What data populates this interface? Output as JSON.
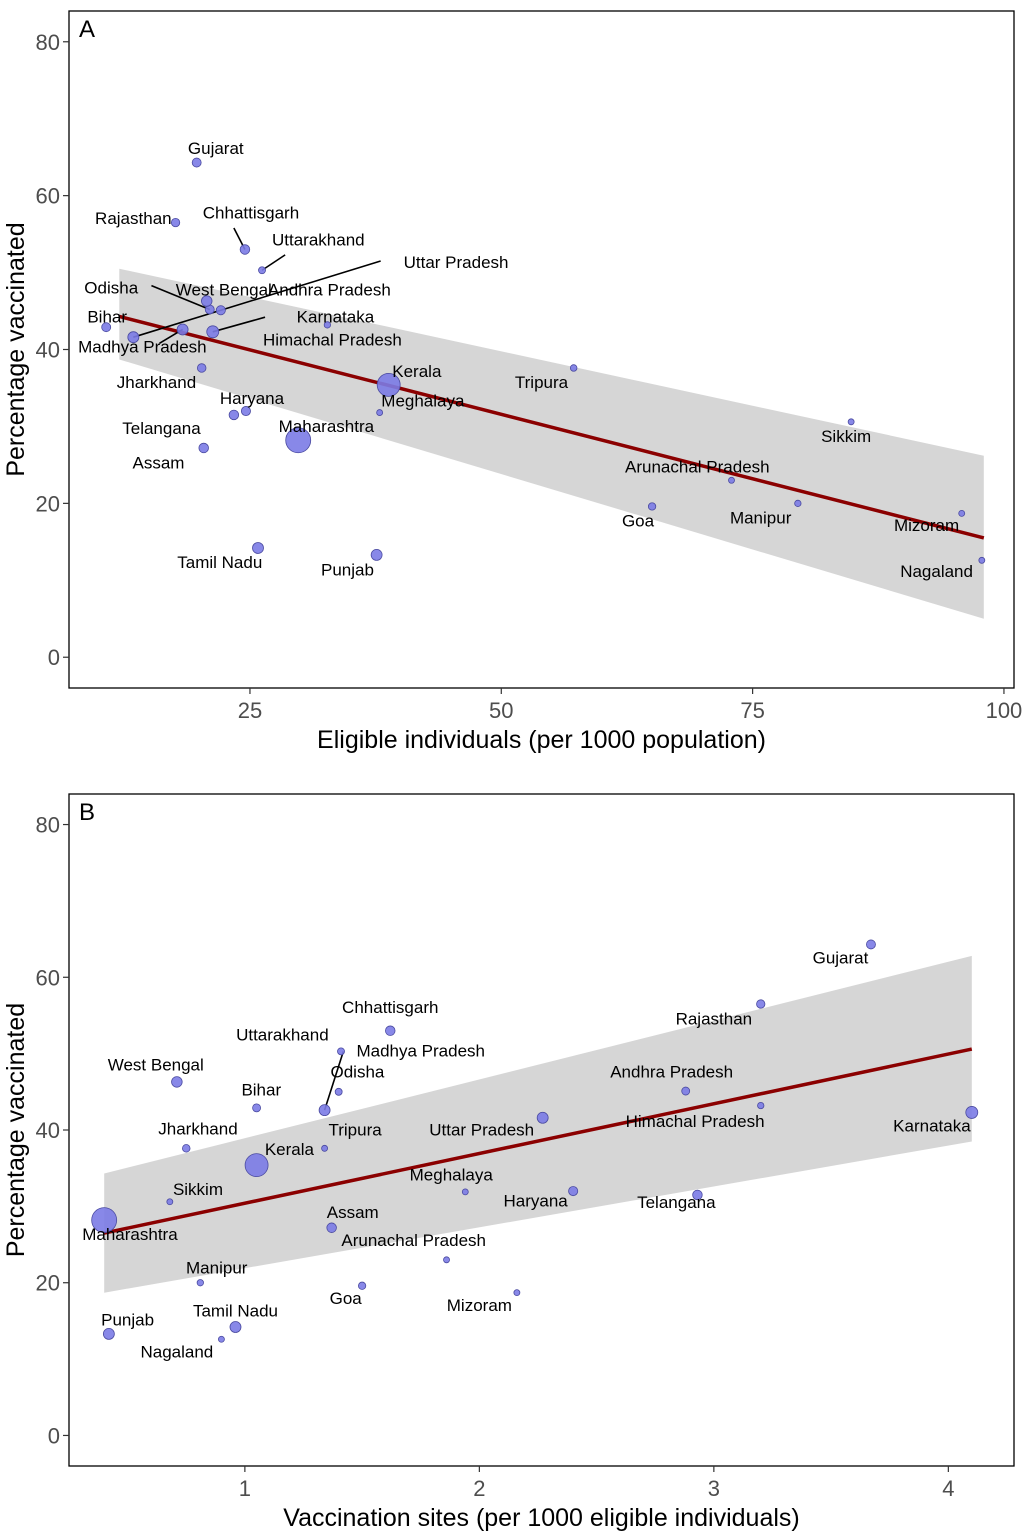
{
  "chart_data": [
    {
      "type": "scatter",
      "panel": "A",
      "xlabel": "Eligible individuals (per 1000 population)",
      "ylabel": "Percentage vaccinated",
      "xlim": [
        7,
        101
      ],
      "ylim": [
        -4,
        84
      ],
      "xticks": [
        25,
        50,
        75,
        100
      ],
      "yticks": [
        0,
        20,
        40,
        60,
        80
      ],
      "fit": {
        "x0": 12,
        "y0": 44.3,
        "x1": 98,
        "y1": 15.5
      },
      "band": [
        [
          12,
          50.5
        ],
        [
          98,
          26.2
        ],
        [
          98,
          5.0
        ],
        [
          12,
          38.7
        ]
      ],
      "points": [
        {
          "name": "Gujarat",
          "x": 19.7,
          "y": 64.3,
          "s": 4.5
        },
        {
          "name": "Rajasthan",
          "x": 17.6,
          "y": 56.5,
          "s": 4.2
        },
        {
          "name": "Chhattisgarh",
          "x": 24.5,
          "y": 53.0,
          "s": 4.8
        },
        {
          "name": "Uttarakhand",
          "x": 26.2,
          "y": 50.3,
          "s": 3.5
        },
        {
          "name": "Uttar Pradesh",
          "x": 13.4,
          "y": 41.6,
          "s": 5.5
        },
        {
          "name": "Odisha",
          "x": 21.0,
          "y": 45.2,
          "s": 4.5
        },
        {
          "name": "West Bengal",
          "x": 20.7,
          "y": 46.3,
          "s": 5.3
        },
        {
          "name": "Andhra Pradesh",
          "x": 22.1,
          "y": 45.1,
          "s": 4.6
        },
        {
          "name": "Bihar",
          "x": 10.7,
          "y": 42.9,
          "s": 4.5
        },
        {
          "name": "Madhya Pradesh",
          "x": 18.3,
          "y": 42.6,
          "s": 5.5
        },
        {
          "name": "Karnataka",
          "x": 21.3,
          "y": 42.3,
          "s": 6.0
        },
        {
          "name": "Himachal Pradesh",
          "x": 32.7,
          "y": 43.2,
          "s": 3.2
        },
        {
          "name": "Jharkhand",
          "x": 20.2,
          "y": 37.6,
          "s": 4.3
        },
        {
          "name": "Kerala",
          "x": 38.8,
          "y": 35.4,
          "s": 11.5
        },
        {
          "name": "Tripura",
          "x": 57.2,
          "y": 37.6,
          "s": 3.3
        },
        {
          "name": "Haryana",
          "x": 24.6,
          "y": 32.0,
          "s": 4.6
        },
        {
          "name": "Meghalaya",
          "x": 37.9,
          "y": 31.8,
          "s": 3.0
        },
        {
          "name": "Telangana",
          "x": 23.4,
          "y": 31.5,
          "s": 4.8
        },
        {
          "name": "Maharashtra",
          "x": 29.8,
          "y": 28.2,
          "s": 12.5
        },
        {
          "name": "Assam",
          "x": 20.4,
          "y": 27.2,
          "s": 4.8
        },
        {
          "name": "Sikkim",
          "x": 84.8,
          "y": 30.6,
          "s": 3.0
        },
        {
          "name": "Arunachal Pradesh",
          "x": 72.9,
          "y": 23.0,
          "s": 3.0
        },
        {
          "name": "Goa",
          "x": 65.0,
          "y": 19.6,
          "s": 3.7
        },
        {
          "name": "Manipur",
          "x": 79.5,
          "y": 20.0,
          "s": 3.2
        },
        {
          "name": "Mizoram",
          "x": 95.8,
          "y": 18.7,
          "s": 3.0
        },
        {
          "name": "Tamil Nadu",
          "x": 25.8,
          "y": 14.2,
          "s": 5.5
        },
        {
          "name": "Punjab",
          "x": 37.6,
          "y": 13.3,
          "s": 5.5
        },
        {
          "name": "Nagaland",
          "x": 97.8,
          "y": 12.6,
          "s": 3.0
        }
      ],
      "labels": [
        {
          "text": "Gujarat",
          "x": 21.6,
          "y": 65.4
        },
        {
          "text": "Rajasthan",
          "x": 13.4,
          "y": 56.3
        },
        {
          "text": "Chhattisgarh",
          "x": 25.1,
          "y": 57.0
        },
        {
          "text": "Uttarakhand",
          "x": 31.8,
          "y": 53.5
        },
        {
          "text": "Uttar Pradesh",
          "x": 45.5,
          "y": 50.6
        },
        {
          "text": "Odisha",
          "x": 11.2,
          "y": 47.3
        },
        {
          "text": "West Bengal",
          "x": 22.4,
          "y": 47.0
        },
        {
          "text": "Andhra Pradesh",
          "x": 32.9,
          "y": 47.0
        },
        {
          "text": "Bihar",
          "x": 10.8,
          "y": 43.5
        },
        {
          "text": "Madhya Pradesh",
          "x": 14.3,
          "y": 39.6
        },
        {
          "text": "Karnataka",
          "x": 33.5,
          "y": 43.5
        },
        {
          "text": "Himachal Pradesh",
          "x": 33.2,
          "y": 40.5
        },
        {
          "text": "Jharkhand",
          "x": 15.7,
          "y": 35.0
        },
        {
          "text": "Kerala",
          "x": 41.6,
          "y": 36.4
        },
        {
          "text": "Tripura",
          "x": 54.0,
          "y": 35.0
        },
        {
          "text": "Haryana",
          "x": 25.2,
          "y": 32.9
        },
        {
          "text": "Meghalaya",
          "x": 42.2,
          "y": 32.6
        },
        {
          "text": "Telangana",
          "x": 16.2,
          "y": 29.0
        },
        {
          "text": "Maharashtra",
          "x": 32.6,
          "y": 29.3
        },
        {
          "text": "Assam",
          "x": 15.9,
          "y": 24.5
        },
        {
          "text": "Sikkim",
          "x": 84.3,
          "y": 28.0
        },
        {
          "text": "Arunachal Pradesh",
          "x": 69.5,
          "y": 24.0
        },
        {
          "text": "Goa",
          "x": 63.6,
          "y": 17.0
        },
        {
          "text": "Manipur",
          "x": 75.8,
          "y": 17.4
        },
        {
          "text": "Mizoram",
          "x": 92.3,
          "y": 16.4
        },
        {
          "text": "Tamil Nadu",
          "x": 22.0,
          "y": 11.6
        },
        {
          "text": "Punjab",
          "x": 34.7,
          "y": 10.6
        },
        {
          "text": "Nagaland",
          "x": 93.3,
          "y": 10.4
        }
      ],
      "leaders": [
        [
          24.5,
          53.0,
          23.4,
          55.8
        ],
        [
          26.2,
          50.3,
          28.5,
          52.3
        ],
        [
          13.4,
          41.6,
          38.0,
          51.5
        ],
        [
          21.0,
          45.2,
          15.2,
          48.3
        ],
        [
          21.3,
          42.3,
          26.5,
          44.2
        ],
        [
          18.3,
          42.6,
          16.0,
          40.8
        ]
      ]
    },
    {
      "type": "scatter",
      "panel": "B",
      "xlabel": "Vaccination sites (per 1000 eligible individuals)",
      "ylabel": "Percentage vaccinated",
      "xlim": [
        0.25,
        4.28
      ],
      "ylim": [
        -4,
        84
      ],
      "xticks": [
        1,
        2,
        3,
        4
      ],
      "yticks": [
        0,
        20,
        40,
        60,
        80
      ],
      "fit": {
        "x0": 0.4,
        "y0": 26.5,
        "x1": 4.1,
        "y1": 50.6
      },
      "band": [
        [
          0.4,
          34.3
        ],
        [
          4.1,
          62.8
        ],
        [
          4.1,
          38.5
        ],
        [
          0.4,
          18.7
        ]
      ],
      "points": [
        {
          "name": "Gujarat",
          "x": 3.67,
          "y": 64.3,
          "s": 4.5
        },
        {
          "name": "Rajasthan",
          "x": 3.2,
          "y": 56.5,
          "s": 4.2
        },
        {
          "name": "Chhattisgarh",
          "x": 1.62,
          "y": 53.0,
          "s": 4.8
        },
        {
          "name": "Madhya Pradesh",
          "x": 1.41,
          "y": 50.3,
          "s": 3.5
        },
        {
          "name": "Uttarakhand",
          "x": 1.34,
          "y": 42.6,
          "s": 5.5
        },
        {
          "name": "Odisha",
          "x": 1.4,
          "y": 45.0,
          "s": 3.5
        },
        {
          "name": "West Bengal",
          "x": 0.71,
          "y": 46.3,
          "s": 5.3
        },
        {
          "name": "Andhra Pradesh",
          "x": 2.88,
          "y": 45.1,
          "s": 4.0
        },
        {
          "name": "Bihar",
          "x": 1.05,
          "y": 42.9,
          "s": 4.0
        },
        {
          "name": "Uttar Pradesh",
          "x": 2.27,
          "y": 41.6,
          "s": 5.5
        },
        {
          "name": "Himachal Pradesh",
          "x": 3.2,
          "y": 43.2,
          "s": 3.2
        },
        {
          "name": "Karnataka",
          "x": 4.1,
          "y": 42.3,
          "s": 6.0
        },
        {
          "name": "Jharkhand",
          "x": 0.75,
          "y": 37.6,
          "s": 3.8
        },
        {
          "name": "Tripura",
          "x": 1.34,
          "y": 37.6,
          "s": 3.0
        },
        {
          "name": "Kerala",
          "x": 1.05,
          "y": 35.4,
          "s": 11.5
        },
        {
          "name": "Meghalaya",
          "x": 1.94,
          "y": 31.9,
          "s": 3.0
        },
        {
          "name": "Haryana",
          "x": 2.4,
          "y": 32.0,
          "s": 4.6
        },
        {
          "name": "Telangana",
          "x": 2.93,
          "y": 31.5,
          "s": 4.8
        },
        {
          "name": "Sikkim",
          "x": 0.68,
          "y": 30.6,
          "s": 3.0
        },
        {
          "name": "Maharashtra",
          "x": 0.4,
          "y": 28.2,
          "s": 12.5
        },
        {
          "name": "Assam",
          "x": 1.37,
          "y": 27.2,
          "s": 4.8
        },
        {
          "name": "Arunachal Pradesh",
          "x": 1.86,
          "y": 23.0,
          "s": 3.0
        },
        {
          "name": "Manipur",
          "x": 0.81,
          "y": 20.0,
          "s": 3.2
        },
        {
          "name": "Goa",
          "x": 1.5,
          "y": 19.6,
          "s": 3.7
        },
        {
          "name": "Mizoram",
          "x": 2.16,
          "y": 18.7,
          "s": 3.0
        },
        {
          "name": "Tamil Nadu",
          "x": 0.96,
          "y": 14.2,
          "s": 5.5
        },
        {
          "name": "Punjab",
          "x": 0.42,
          "y": 13.3,
          "s": 5.5
        },
        {
          "name": "Nagaland",
          "x": 0.9,
          "y": 12.6,
          "s": 3.0
        }
      ],
      "labels": [
        {
          "text": "Gujarat",
          "x": 3.54,
          "y": 61.8
        },
        {
          "text": "Rajasthan",
          "x": 3.0,
          "y": 53.8
        },
        {
          "text": "Chhattisgarh",
          "x": 1.62,
          "y": 55.3
        },
        {
          "text": "Uttarakhand",
          "x": 1.16,
          "y": 51.7
        },
        {
          "text": "Madhya Pradesh",
          "x": 1.75,
          "y": 49.6
        },
        {
          "text": "Odisha",
          "x": 1.48,
          "y": 46.9
        },
        {
          "text": "West Bengal",
          "x": 0.62,
          "y": 47.8
        },
        {
          "text": "Andhra Pradesh",
          "x": 2.82,
          "y": 46.9
        },
        {
          "text": "Bihar",
          "x": 1.07,
          "y": 44.5
        },
        {
          "text": "Uttar Pradesh",
          "x": 2.01,
          "y": 39.3
        },
        {
          "text": "Himachal Pradesh",
          "x": 2.92,
          "y": 40.4
        },
        {
          "text": "Karnataka",
          "x": 3.93,
          "y": 39.8
        },
        {
          "text": "Jharkhand",
          "x": 0.8,
          "y": 39.4
        },
        {
          "text": "Tripura",
          "x": 1.47,
          "y": 39.3
        },
        {
          "text": "Kerala",
          "x": 1.19,
          "y": 36.7
        },
        {
          "text": "Meghalaya",
          "x": 1.88,
          "y": 33.4
        },
        {
          "text": "Haryana",
          "x": 2.24,
          "y": 30.0
        },
        {
          "text": "Telangana",
          "x": 2.84,
          "y": 29.8
        },
        {
          "text": "Sikkim",
          "x": 0.8,
          "y": 31.5
        },
        {
          "text": "Maharashtra",
          "x": 0.51,
          "y": 25.6
        },
        {
          "text": "Assam",
          "x": 1.46,
          "y": 28.5
        },
        {
          "text": "Arunachal Pradesh",
          "x": 1.72,
          "y": 24.8
        },
        {
          "text": "Manipur",
          "x": 0.88,
          "y": 21.2
        },
        {
          "text": "Goa",
          "x": 1.43,
          "y": 17.2
        },
        {
          "text": "Mizoram",
          "x": 2.0,
          "y": 16.3
        },
        {
          "text": "Tamil Nadu",
          "x": 0.96,
          "y": 15.6
        },
        {
          "text": "Punjab",
          "x": 0.5,
          "y": 14.4
        },
        {
          "text": "Nagaland",
          "x": 0.71,
          "y": 10.2
        }
      ],
      "leaders": [
        [
          1.34,
          42.6,
          1.42,
          50.3
        ]
      ]
    }
  ]
}
